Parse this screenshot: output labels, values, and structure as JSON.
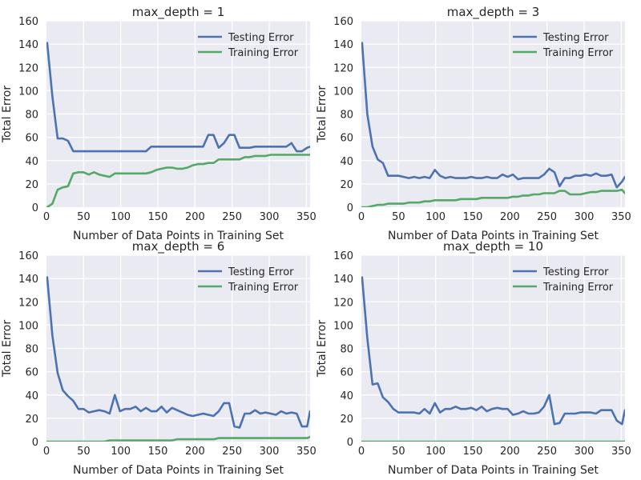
{
  "figure": {
    "suptitle": "",
    "colors": {
      "testing": "#4C72B0",
      "training": "#55A868",
      "background": "#EAEAF2",
      "grid": "#FFFFFF"
    }
  },
  "chart_data": [
    {
      "type": "line",
      "title": "max_depth = 1",
      "xlabel": "Number of Data Points in Training Set",
      "ylabel": "Total Error",
      "xlim": [
        0,
        355
      ],
      "ylim": [
        0,
        160
      ],
      "xticks": [
        0,
        50,
        100,
        150,
        200,
        250,
        300,
        350
      ],
      "yticks": [
        0,
        20,
        40,
        60,
        80,
        100,
        120,
        140,
        160
      ],
      "grid": true,
      "legend": "top-right",
      "x": [
        1,
        8,
        15,
        22,
        29,
        36,
        43,
        50,
        57,
        64,
        71,
        78,
        85,
        92,
        99,
        106,
        113,
        120,
        127,
        134,
        141,
        148,
        155,
        162,
        169,
        176,
        183,
        190,
        197,
        204,
        211,
        218,
        225,
        232,
        239,
        246,
        253,
        260,
        267,
        274,
        281,
        288,
        295,
        302,
        309,
        316,
        323,
        330,
        337,
        344,
        351,
        355
      ],
      "series": [
        {
          "name": "Testing Error",
          "values": [
            141,
            95,
            59,
            59,
            57,
            48,
            48,
            48,
            48,
            48,
            48,
            48,
            48,
            48,
            48,
            48,
            48,
            48,
            48,
            48,
            52,
            52,
            52,
            52,
            52,
            52,
            52,
            52,
            52,
            52,
            52,
            62,
            62,
            51,
            55,
            62,
            62,
            51,
            51,
            51,
            52,
            52,
            52,
            52,
            52,
            52,
            52,
            55,
            48,
            48,
            51,
            52
          ]
        },
        {
          "name": "Training Error",
          "values": [
            0,
            3,
            15,
            17,
            18,
            29,
            30,
            30,
            28,
            30,
            28,
            27,
            26,
            29,
            29,
            29,
            29,
            29,
            29,
            29,
            30,
            32,
            33,
            34,
            34,
            33,
            33,
            34,
            36,
            37,
            37,
            38,
            38,
            41,
            41,
            41,
            41,
            41,
            43,
            43,
            44,
            44,
            44,
            45,
            45,
            45,
            45,
            45,
            45,
            45,
            45,
            45
          ]
        }
      ]
    },
    {
      "type": "line",
      "title": "max_depth = 3",
      "xlabel": "Number of Data Points in Training Set",
      "ylabel": "Total Error",
      "xlim": [
        0,
        355
      ],
      "ylim": [
        0,
        160
      ],
      "xticks": [
        0,
        50,
        100,
        150,
        200,
        250,
        300,
        350
      ],
      "yticks": [
        0,
        20,
        40,
        60,
        80,
        100,
        120,
        140,
        160
      ],
      "grid": true,
      "legend": "top-right",
      "x": [
        1,
        8,
        15,
        22,
        29,
        36,
        43,
        50,
        57,
        64,
        71,
        78,
        85,
        92,
        99,
        106,
        113,
        120,
        127,
        134,
        141,
        148,
        155,
        162,
        169,
        176,
        183,
        190,
        197,
        204,
        211,
        218,
        225,
        232,
        239,
        246,
        253,
        260,
        267,
        274,
        281,
        288,
        295,
        302,
        309,
        316,
        323,
        330,
        337,
        344,
        351,
        355
      ],
      "series": [
        {
          "name": "Testing Error",
          "values": [
            141,
            80,
            52,
            41,
            38,
            27,
            27,
            27,
            26,
            25,
            26,
            25,
            26,
            25,
            32,
            27,
            25,
            26,
            25,
            25,
            25,
            26,
            25,
            25,
            26,
            25,
            25,
            28,
            26,
            28,
            24,
            25,
            25,
            25,
            25,
            28,
            33,
            30,
            18,
            25,
            25,
            27,
            27,
            28,
            27,
            29,
            27,
            27,
            28,
            17,
            22,
            26
          ]
        },
        {
          "name": "Training Error",
          "values": [
            0,
            0,
            1,
            2,
            2,
            3,
            3,
            3,
            3,
            4,
            4,
            4,
            5,
            5,
            6,
            6,
            6,
            6,
            6,
            7,
            7,
            7,
            7,
            8,
            8,
            8,
            8,
            8,
            8,
            9,
            9,
            10,
            10,
            11,
            11,
            12,
            12,
            12,
            14,
            14,
            11,
            11,
            11,
            12,
            13,
            13,
            14,
            14,
            14,
            14,
            15,
            12
          ]
        }
      ]
    },
    {
      "type": "line",
      "title": "max_depth = 6",
      "xlabel": "Number of Data Points in Training Set",
      "ylabel": "Total Error",
      "xlim": [
        0,
        355
      ],
      "ylim": [
        0,
        160
      ],
      "xticks": [
        0,
        50,
        100,
        150,
        200,
        250,
        300,
        350
      ],
      "yticks": [
        0,
        20,
        40,
        60,
        80,
        100,
        120,
        140,
        160
      ],
      "grid": true,
      "legend": "top-right",
      "x": [
        1,
        8,
        15,
        22,
        29,
        36,
        43,
        50,
        57,
        64,
        71,
        78,
        85,
        92,
        99,
        106,
        113,
        120,
        127,
        134,
        141,
        148,
        155,
        162,
        169,
        176,
        183,
        190,
        197,
        204,
        211,
        218,
        225,
        232,
        239,
        246,
        253,
        260,
        267,
        274,
        281,
        288,
        295,
        302,
        309,
        316,
        323,
        330,
        337,
        344,
        351,
        355
      ],
      "series": [
        {
          "name": "Testing Error",
          "values": [
            141,
            91,
            59,
            44,
            39,
            35,
            28,
            28,
            25,
            26,
            27,
            26,
            24,
            40,
            26,
            28,
            28,
            30,
            26,
            29,
            26,
            26,
            30,
            25,
            29,
            27,
            25,
            23,
            22,
            23,
            24,
            23,
            22,
            26,
            33,
            33,
            13,
            12,
            24,
            24,
            27,
            24,
            25,
            24,
            23,
            26,
            24,
            25,
            24,
            13,
            13,
            26
          ]
        },
        {
          "name": "Training Error",
          "values": [
            0,
            0,
            0,
            0,
            0,
            0,
            0,
            0,
            0,
            0,
            0,
            0,
            1,
            1,
            1,
            1,
            1,
            1,
            1,
            1,
            1,
            1,
            1,
            1,
            1,
            2,
            2,
            2,
            2,
            2,
            2,
            2,
            2,
            3,
            3,
            3,
            3,
            3,
            3,
            3,
            3,
            3,
            3,
            3,
            3,
            3,
            3,
            3,
            3,
            3,
            3,
            4
          ]
        }
      ]
    },
    {
      "type": "line",
      "title": "max_depth = 10",
      "xlabel": "Number of Data Points in Training Set",
      "ylabel": "Total Error",
      "xlim": [
        0,
        355
      ],
      "ylim": [
        0,
        160
      ],
      "xticks": [
        0,
        50,
        100,
        150,
        200,
        250,
        300,
        350
      ],
      "yticks": [
        0,
        20,
        40,
        60,
        80,
        100,
        120,
        140,
        160
      ],
      "grid": true,
      "legend": "top-right",
      "x": [
        1,
        8,
        15,
        22,
        29,
        36,
        43,
        50,
        57,
        64,
        71,
        78,
        85,
        92,
        99,
        106,
        113,
        120,
        127,
        134,
        141,
        148,
        155,
        162,
        169,
        176,
        183,
        190,
        197,
        204,
        211,
        218,
        225,
        232,
        239,
        246,
        253,
        260,
        267,
        274,
        281,
        288,
        295,
        302,
        309,
        316,
        323,
        330,
        337,
        344,
        351,
        355
      ],
      "series": [
        {
          "name": "Testing Error",
          "values": [
            141,
            89,
            49,
            50,
            38,
            34,
            28,
            25,
            25,
            25,
            25,
            24,
            28,
            24,
            33,
            25,
            28,
            28,
            30,
            28,
            28,
            29,
            27,
            30,
            26,
            28,
            29,
            28,
            28,
            23,
            24,
            26,
            24,
            24,
            25,
            30,
            40,
            15,
            16,
            24,
            24,
            24,
            25,
            25,
            25,
            24,
            27,
            27,
            27,
            18,
            15,
            27
          ]
        },
        {
          "name": "Training Error",
          "values": [
            0,
            0,
            0,
            0,
            0,
            0,
            0,
            0,
            0,
            0,
            0,
            0,
            0,
            0,
            0,
            0,
            0,
            0,
            0,
            0,
            0,
            0,
            0,
            0,
            0,
            0,
            0,
            0,
            0,
            0,
            0,
            0,
            0,
            0,
            0,
            0,
            0,
            0,
            0,
            0,
            0,
            0,
            0,
            0,
            0,
            0,
            0,
            0,
            0,
            0,
            0,
            0
          ]
        }
      ]
    }
  ]
}
